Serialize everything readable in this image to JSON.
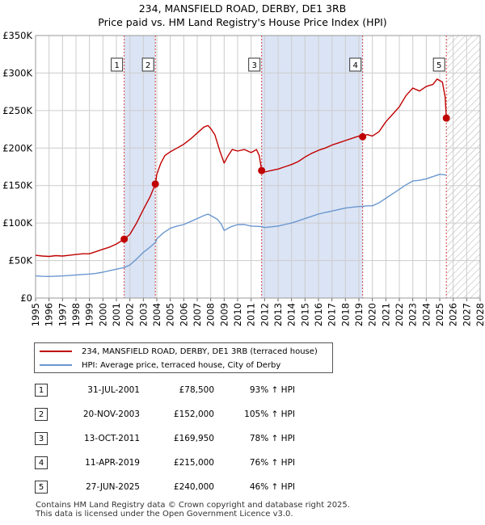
{
  "title_line1": "234, MANSFIELD ROAD, DERBY, DE1 3RB",
  "title_line2": "Price paid vs. HM Land Registry's House Price Index (HPI)",
  "legend": {
    "property_label": "234, MANSFIELD ROAD, DERBY, DE1 3RB (terraced house)",
    "hpi_label": "HPI: Average price, terraced house, City of Derby"
  },
  "colors": {
    "property": "#c00000",
    "hpi": "#6a97cf",
    "shade": "#dbe4f5",
    "marker_line": "#d04040",
    "grid": "#cccccc"
  },
  "chart_data": {
    "type": "line",
    "title": "Price paid vs. HM Land Registry's House Price Index (HPI)",
    "xlim": [
      1995,
      2028
    ],
    "ylim": [
      0,
      350000
    ],
    "y_ticks": [
      0,
      50000,
      100000,
      150000,
      200000,
      250000,
      300000,
      350000
    ],
    "y_tick_labels": [
      "£0",
      "£50K",
      "£100K",
      "£150K",
      "£200K",
      "£250K",
      "£300K",
      "£350K"
    ],
    "x_ticks": [
      1995,
      1996,
      1997,
      1998,
      1999,
      2000,
      2001,
      2002,
      2003,
      2004,
      2005,
      2006,
      2007,
      2008,
      2009,
      2010,
      2011,
      2012,
      2013,
      2014,
      2015,
      2016,
      2017,
      2018,
      2019,
      2020,
      2021,
      2022,
      2023,
      2024,
      2025,
      2026,
      2027,
      2028
    ],
    "x_tick_labels": [
      "1995",
      "1996",
      "1997",
      "1998",
      "1999",
      "2000",
      "2001",
      "2002",
      "2003",
      "2004",
      "2005",
      "2006",
      "2007",
      "2008",
      "2009",
      "2010",
      "2011",
      "2012",
      "2013",
      "2014",
      "2015",
      "2016",
      "2017",
      "2018",
      "2019",
      "2020",
      "2021",
      "2022",
      "2023",
      "2024",
      "2025",
      "2026",
      "2027",
      "2028"
    ],
    "shaded_ranges": [
      [
        2001.58,
        2003.89
      ],
      [
        2011.78,
        2019.28
      ]
    ],
    "future_hatch_from": 2025.5,
    "series": [
      {
        "name": "234, MANSFIELD ROAD, DERBY, DE1 3RB (terraced house)",
        "points": [
          [
            1995,
            57000
          ],
          [
            1995.5,
            56000
          ],
          [
            1996,
            55500
          ],
          [
            1996.5,
            56500
          ],
          [
            1997,
            56000
          ],
          [
            1997.5,
            57000
          ],
          [
            1998,
            58000
          ],
          [
            1998.5,
            59000
          ],
          [
            1999,
            59000
          ],
          [
            1999.5,
            62000
          ],
          [
            2000,
            65000
          ],
          [
            2000.5,
            68000
          ],
          [
            2001,
            72000
          ],
          [
            2001.58,
            78500
          ],
          [
            2002,
            85000
          ],
          [
            2002.5,
            100000
          ],
          [
            2003,
            118000
          ],
          [
            2003.5,
            135000
          ],
          [
            2003.89,
            152000
          ],
          [
            2004,
            165000
          ],
          [
            2004.3,
            180000
          ],
          [
            2004.6,
            190000
          ],
          [
            2005,
            195000
          ],
          [
            2005.5,
            200000
          ],
          [
            2006,
            205000
          ],
          [
            2006.5,
            212000
          ],
          [
            2007,
            220000
          ],
          [
            2007.5,
            228000
          ],
          [
            2007.8,
            230000
          ],
          [
            2008,
            226000
          ],
          [
            2008.3,
            218000
          ],
          [
            2008.7,
            195000
          ],
          [
            2009,
            180000
          ],
          [
            2009.3,
            190000
          ],
          [
            2009.6,
            198000
          ],
          [
            2010,
            196000
          ],
          [
            2010.5,
            198000
          ],
          [
            2011,
            194000
          ],
          [
            2011.4,
            198000
          ],
          [
            2011.6,
            190000
          ],
          [
            2011.78,
            169950
          ],
          [
            2012,
            168000
          ],
          [
            2012.5,
            170000
          ],
          [
            2013,
            172000
          ],
          [
            2013.5,
            175000
          ],
          [
            2014,
            178000
          ],
          [
            2014.5,
            182000
          ],
          [
            2015,
            188000
          ],
          [
            2015.5,
            193000
          ],
          [
            2016,
            197000
          ],
          [
            2016.5,
            200000
          ],
          [
            2017,
            204000
          ],
          [
            2017.5,
            207000
          ],
          [
            2018,
            210000
          ],
          [
            2018.5,
            213000
          ],
          [
            2019,
            216000
          ],
          [
            2019.28,
            215000
          ],
          [
            2019.6,
            218000
          ],
          [
            2020,
            216000
          ],
          [
            2020.5,
            222000
          ],
          [
            2021,
            235000
          ],
          [
            2021.5,
            245000
          ],
          [
            2022,
            255000
          ],
          [
            2022.5,
            270000
          ],
          [
            2023,
            280000
          ],
          [
            2023.5,
            276000
          ],
          [
            2024,
            282000
          ],
          [
            2024.5,
            285000
          ],
          [
            2024.8,
            292000
          ],
          [
            2025.2,
            288000
          ],
          [
            2025.4,
            268000
          ],
          [
            2025.49,
            240000
          ]
        ]
      },
      {
        "name": "HPI: Average price, terraced house, City of Derby",
        "points": [
          [
            1995,
            29500
          ],
          [
            1995.5,
            29000
          ],
          [
            1996,
            28800
          ],
          [
            1996.5,
            29200
          ],
          [
            1997,
            29500
          ],
          [
            1997.5,
            30000
          ],
          [
            1998,
            30800
          ],
          [
            1998.5,
            31500
          ],
          [
            1999,
            32000
          ],
          [
            1999.5,
            33000
          ],
          [
            2000,
            34500
          ],
          [
            2000.5,
            36500
          ],
          [
            2001,
            38500
          ],
          [
            2001.58,
            40700
          ],
          [
            2002,
            44000
          ],
          [
            2002.5,
            52000
          ],
          [
            2003,
            61000
          ],
          [
            2003.5,
            68000
          ],
          [
            2003.89,
            74200
          ],
          [
            2004,
            79000
          ],
          [
            2004.5,
            87000
          ],
          [
            2005,
            93000
          ],
          [
            2005.5,
            96000
          ],
          [
            2006,
            98000
          ],
          [
            2006.5,
            102000
          ],
          [
            2007,
            106000
          ],
          [
            2007.5,
            110000
          ],
          [
            2007.8,
            112000
          ],
          [
            2008,
            110000
          ],
          [
            2008.5,
            105000
          ],
          [
            2008.8,
            98000
          ],
          [
            2009,
            90000
          ],
          [
            2009.5,
            95000
          ],
          [
            2010,
            98000
          ],
          [
            2010.5,
            98000
          ],
          [
            2011,
            96000
          ],
          [
            2011.5,
            95500
          ],
          [
            2011.78,
            95300
          ],
          [
            2012,
            94000
          ],
          [
            2012.5,
            95000
          ],
          [
            2013,
            96000
          ],
          [
            2013.5,
            98000
          ],
          [
            2014,
            100000
          ],
          [
            2014.5,
            103000
          ],
          [
            2015,
            106000
          ],
          [
            2015.5,
            109000
          ],
          [
            2016,
            112000
          ],
          [
            2016.5,
            114000
          ],
          [
            2017,
            116000
          ],
          [
            2017.5,
            118000
          ],
          [
            2018,
            120000
          ],
          [
            2018.5,
            121000
          ],
          [
            2019,
            122000
          ],
          [
            2019.28,
            122200
          ],
          [
            2019.6,
            123000
          ],
          [
            2020,
            123000
          ],
          [
            2020.5,
            127000
          ],
          [
            2021,
            133000
          ],
          [
            2021.5,
            139000
          ],
          [
            2022,
            145000
          ],
          [
            2022.5,
            151000
          ],
          [
            2023,
            156000
          ],
          [
            2023.5,
            157000
          ],
          [
            2024,
            159000
          ],
          [
            2024.5,
            162000
          ],
          [
            2025,
            165000
          ],
          [
            2025.49,
            164000
          ]
        ]
      }
    ],
    "sales": [
      {
        "label": "1",
        "x": 2001.58,
        "value": 78500
      },
      {
        "label": "2",
        "x": 2003.89,
        "value": 152000
      },
      {
        "label": "3",
        "x": 2011.78,
        "value": 169950
      },
      {
        "label": "4",
        "x": 2019.28,
        "value": 215000
      },
      {
        "label": "5",
        "x": 2025.49,
        "value": 240000
      }
    ]
  },
  "transactions": [
    {
      "num": "1",
      "date": "31-JUL-2001",
      "price": "£78,500",
      "hpi": "93% ↑ HPI"
    },
    {
      "num": "2",
      "date": "20-NOV-2003",
      "price": "£152,000",
      "hpi": "105% ↑ HPI"
    },
    {
      "num": "3",
      "date": "13-OCT-2011",
      "price": "£169,950",
      "hpi": "78% ↑ HPI"
    },
    {
      "num": "4",
      "date": "11-APR-2019",
      "price": "£215,000",
      "hpi": "76% ↑ HPI"
    },
    {
      "num": "5",
      "date": "27-JUN-2025",
      "price": "£240,000",
      "hpi": "46% ↑ HPI"
    }
  ],
  "footer": {
    "line1": "Contains HM Land Registry data © Crown copyright and database right 2025.",
    "line2": "This data is licensed under the Open Government Licence v3.0."
  }
}
